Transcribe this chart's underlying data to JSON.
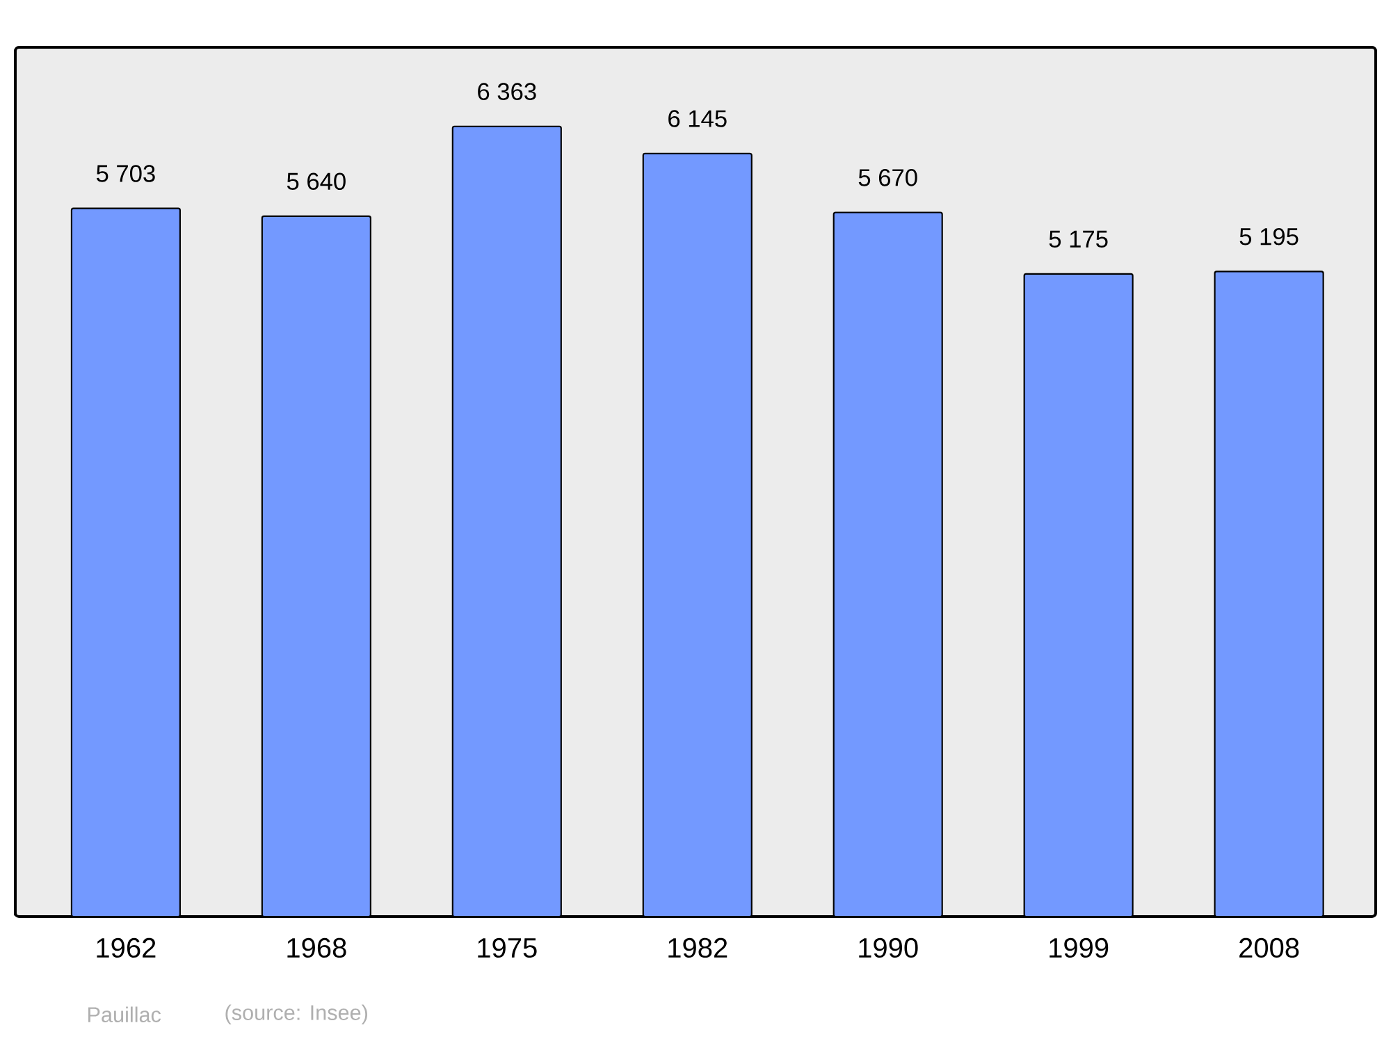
{
  "chart_data": {
    "type": "bar",
    "categories": [
      "1962",
      "1968",
      "1975",
      "1982",
      "1990",
      "1999",
      "2008"
    ],
    "values": [
      5703,
      5640,
      6363,
      6145,
      5670,
      5175,
      5195
    ],
    "value_labels": [
      "5 703",
      "5 640",
      "6 363",
      "6 145",
      "5 670",
      "5 175",
      "5 195"
    ],
    "color": "#7399ff",
    "ylim": [
      0,
      7000
    ],
    "tick_labels": "x",
    "annotations": [
      "Pauillac",
      "(source: Insee)"
    ]
  }
}
